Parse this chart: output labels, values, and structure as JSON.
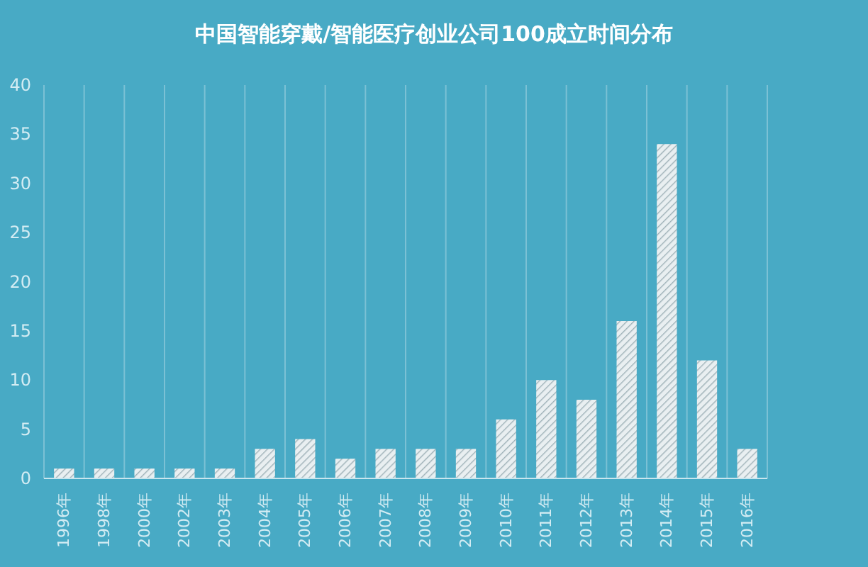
{
  "chart_data": {
    "type": "bar",
    "title": "中国智能穿戴/智能医疗创业公司100成立时间分布",
    "categories": [
      "1996年",
      "1998年",
      "2000年",
      "2002年",
      "2003年",
      "2004年",
      "2005年",
      "2006年",
      "2007年",
      "2008年",
      "2009年",
      "2010年",
      "2011年",
      "2012年",
      "2013年",
      "2014年",
      "2015年",
      "2016年"
    ],
    "values": [
      1,
      1,
      1,
      1,
      1,
      3,
      4,
      2,
      3,
      3,
      3,
      6,
      10,
      8,
      16,
      34,
      12,
      3
    ],
    "color": "#e9eff1",
    "ylim": [
      0,
      40
    ],
    "yticks": [
      0,
      5,
      10,
      15,
      20,
      25,
      30,
      35,
      40
    ],
    "grid": "x"
  }
}
